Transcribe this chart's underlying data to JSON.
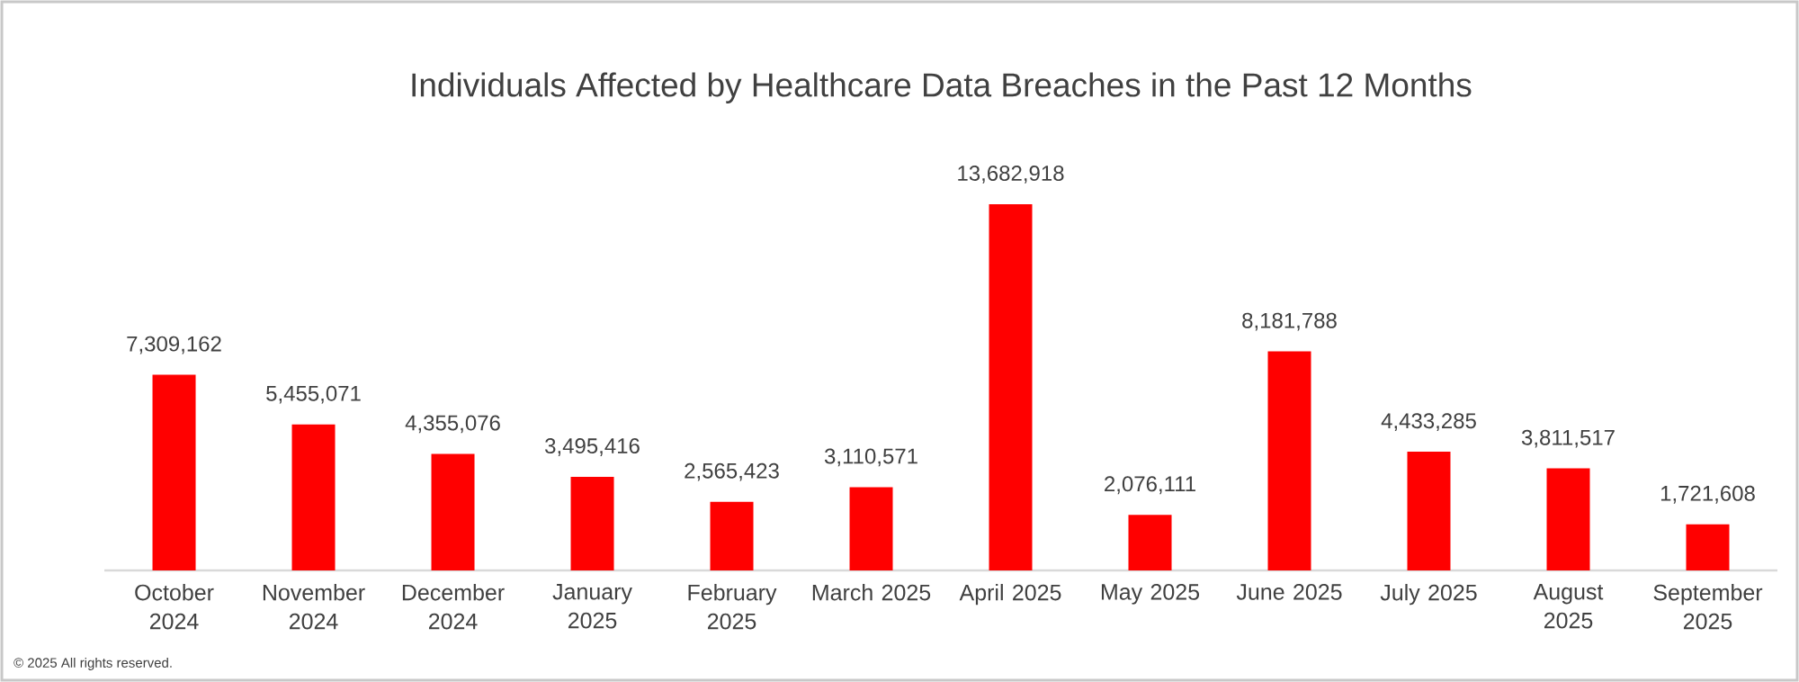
{
  "chart_data": {
    "type": "bar",
    "title": "Individuals Affected by Healthcare Data Breaches in the Past 12 Months",
    "categories": [
      "October 2024",
      "November 2024",
      "December 2024",
      "January 2025",
      "February 2025",
      "March 2025",
      "April 2025",
      "May 2025",
      "June 2025",
      "July 2025",
      "August 2025",
      "September 2025"
    ],
    "values": [
      7309162,
      5455071,
      4355076,
      3495416,
      2565423,
      3110571,
      13682918,
      2076111,
      8181788,
      4433285,
      3811517,
      1721608
    ],
    "value_labels": [
      "7,309,162",
      "5,455,071",
      "4,355,076",
      "3,495,416",
      "2,565,423",
      "3,110,571",
      "13,682,918",
      "2,076,111",
      "8,181,788",
      "4,433,285",
      "3,811,517",
      "1,721,608"
    ],
    "color": "#ff0000",
    "annotations": [
      "© 2025 All rights reserved."
    ]
  }
}
